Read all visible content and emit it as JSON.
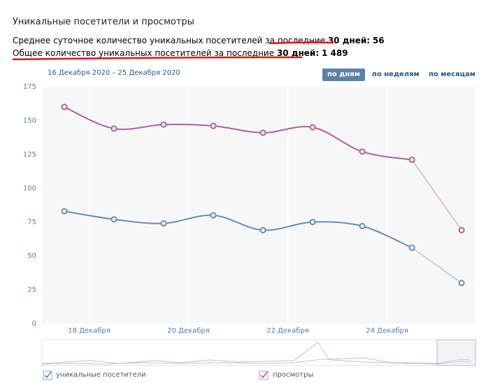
{
  "header": {
    "title": "Уникальные посетители и просмотры",
    "stats": [
      {
        "label": "Среднее суточное количество уникальных посетителей за последние",
        "period": "30 дней:",
        "value": 56
      },
      {
        "label": "Общее количество уникальных посетителей за последние",
        "period": "30 дней:",
        "value": {
          "value": 1489,
          "label": "1 489"
        }
      }
    ]
  },
  "controls": {
    "range": "16 Декабря 2020 – 25 Декабря 2020",
    "buttons": [
      "по дням",
      "по неделям",
      "по месяцам"
    ]
  },
  "chart_data": {
    "type": "line",
    "x": [
      17.5,
      18.5,
      19.5,
      20.5,
      21.5,
      22.5,
      23.5,
      24.5,
      25.5
    ],
    "series": [
      {
        "name": "уникальные посетители",
        "color": "#6a8bb0",
        "values": [
          83,
          77,
          74,
          80,
          69,
          75,
          72,
          56,
          30
        ]
      },
      {
        "name": "просмотры",
        "color": "#b0609a",
        "values": [
          160,
          144,
          147,
          146,
          141,
          145,
          127,
          121,
          69
        ]
      }
    ],
    "xlim": [
      17.05,
      25.78
    ],
    "xticks": [
      {
        "value": 18,
        "label": "18 Декабря"
      },
      {
        "value": 20,
        "label": "20 Декабря"
      },
      {
        "value": 22,
        "label": "22 Декабря"
      },
      {
        "value": 24,
        "label": "24 Декабря"
      }
    ],
    "ylim": [
      0,
      175
    ],
    "yticks": [
      0,
      25,
      50,
      75,
      100,
      125,
      150,
      175
    ],
    "grid": true
  }
}
